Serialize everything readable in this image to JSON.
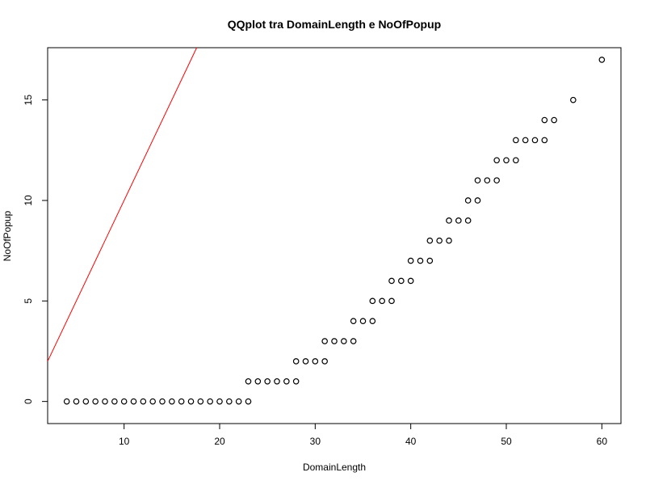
{
  "chart_data": {
    "type": "scatter",
    "title": "QQplot tra DomainLength e NoOfPopup",
    "xlabel": "DomainLength",
    "ylabel": "NoOfPopup",
    "xlim": [
      2,
      62
    ],
    "ylim": [
      -1.1,
      17.6
    ],
    "xticks": [
      10,
      20,
      30,
      40,
      50,
      60
    ],
    "yticks": [
      0,
      5,
      10,
      15
    ],
    "grid": false,
    "legend": "none",
    "series": [
      {
        "marker": "open-circle",
        "color": "#000000",
        "points": [
          [
            4,
            0
          ],
          [
            5,
            0
          ],
          [
            6,
            0
          ],
          [
            7,
            0
          ],
          [
            8,
            0
          ],
          [
            9,
            0
          ],
          [
            10,
            0
          ],
          [
            11,
            0
          ],
          [
            12,
            0
          ],
          [
            13,
            0
          ],
          [
            14,
            0
          ],
          [
            15,
            0
          ],
          [
            16,
            0
          ],
          [
            17,
            0
          ],
          [
            18,
            0
          ],
          [
            19,
            0
          ],
          [
            20,
            0
          ],
          [
            21,
            0
          ],
          [
            22,
            0
          ],
          [
            23,
            0
          ],
          [
            23,
            1
          ],
          [
            24,
            1
          ],
          [
            25,
            1
          ],
          [
            26,
            1
          ],
          [
            27,
            1
          ],
          [
            28,
            1
          ],
          [
            28,
            2
          ],
          [
            29,
            2
          ],
          [
            30,
            2
          ],
          [
            31,
            2
          ],
          [
            31,
            3
          ],
          [
            32,
            3
          ],
          [
            33,
            3
          ],
          [
            34,
            3
          ],
          [
            34,
            4
          ],
          [
            35,
            4
          ],
          [
            36,
            4
          ],
          [
            36,
            5
          ],
          [
            37,
            5
          ],
          [
            38,
            5
          ],
          [
            38,
            6
          ],
          [
            39,
            6
          ],
          [
            40,
            6
          ],
          [
            40,
            7
          ],
          [
            41,
            7
          ],
          [
            42,
            7
          ],
          [
            42,
            8
          ],
          [
            43,
            8
          ],
          [
            44,
            8
          ],
          [
            44,
            9
          ],
          [
            45,
            9
          ],
          [
            46,
            9
          ],
          [
            46,
            10
          ],
          [
            47,
            10
          ],
          [
            47,
            11
          ],
          [
            48,
            11
          ],
          [
            49,
            11
          ],
          [
            49,
            12
          ],
          [
            50,
            12
          ],
          [
            51,
            12
          ],
          [
            51,
            13
          ],
          [
            52,
            13
          ],
          [
            53,
            13
          ],
          [
            54,
            13
          ],
          [
            54,
            14
          ],
          [
            55,
            14
          ],
          [
            57,
            15
          ],
          [
            60,
            17
          ]
        ]
      }
    ],
    "reference_line": {
      "type": "abline",
      "intercept": 0,
      "slope": 1,
      "color": "#ff0000"
    }
  }
}
